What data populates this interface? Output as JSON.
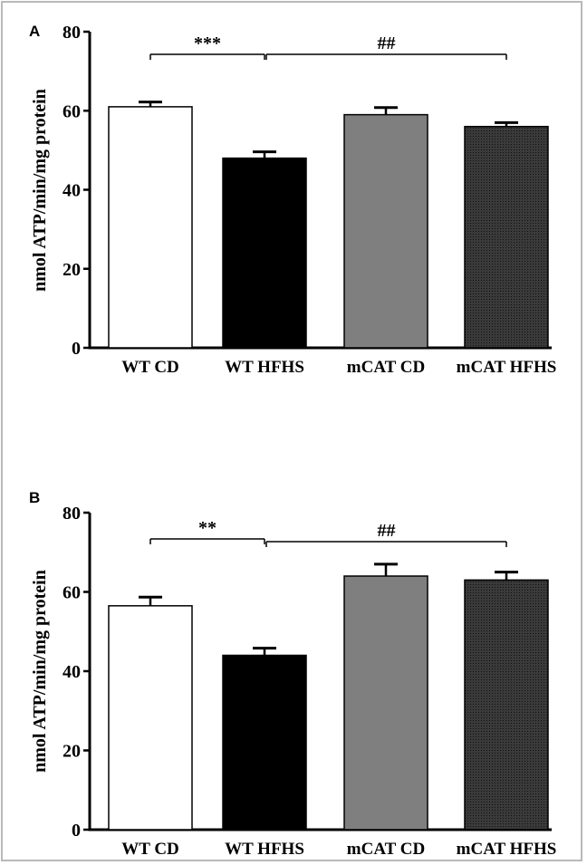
{
  "colors": {
    "bar_fills": [
      "#ffffff",
      "#000000",
      "#7f7f7f",
      "#303030"
    ],
    "stroke": "#000000",
    "frame": "#b9b9b9"
  },
  "chart_data": [
    {
      "panel": "A",
      "type": "bar",
      "ylabel": "nmol ATP/min/mg protein",
      "ylim": [
        0,
        80
      ],
      "yticks": [
        "0",
        "20",
        "40",
        "60",
        "80"
      ],
      "categories": [
        "WT CD",
        "WT HFHS",
        "mCAT CD",
        "mCAT HFHS"
      ],
      "values": [
        61,
        48,
        59,
        56
      ],
      "errors": [
        1.2,
        1.6,
        1.8,
        1.0
      ],
      "patterns": [
        "open",
        "solid",
        "gray",
        "dark-dotted"
      ],
      "annotations": [
        {
          "text": "***",
          "from": 0,
          "to": 1
        },
        {
          "text": "##",
          "from": 1,
          "to": 3
        }
      ]
    },
    {
      "panel": "B",
      "type": "bar",
      "ylabel": "nmol ATP/min/mg protein",
      "ylim": [
        0,
        80
      ],
      "yticks": [
        "0",
        "20",
        "40",
        "60",
        "80"
      ],
      "categories": [
        "WT CD",
        "WT HFHS",
        "mCAT CD",
        "mCAT HFHS"
      ],
      "values": [
        56.5,
        44,
        64,
        63
      ],
      "errors": [
        2.2,
        1.8,
        3.0,
        2.0
      ],
      "patterns": [
        "open",
        "solid",
        "gray",
        "dark-dotted"
      ],
      "annotations": [
        {
          "text": "**",
          "from": 0,
          "to": 1
        },
        {
          "text": "##",
          "from": 1,
          "to": 3
        }
      ]
    }
  ]
}
